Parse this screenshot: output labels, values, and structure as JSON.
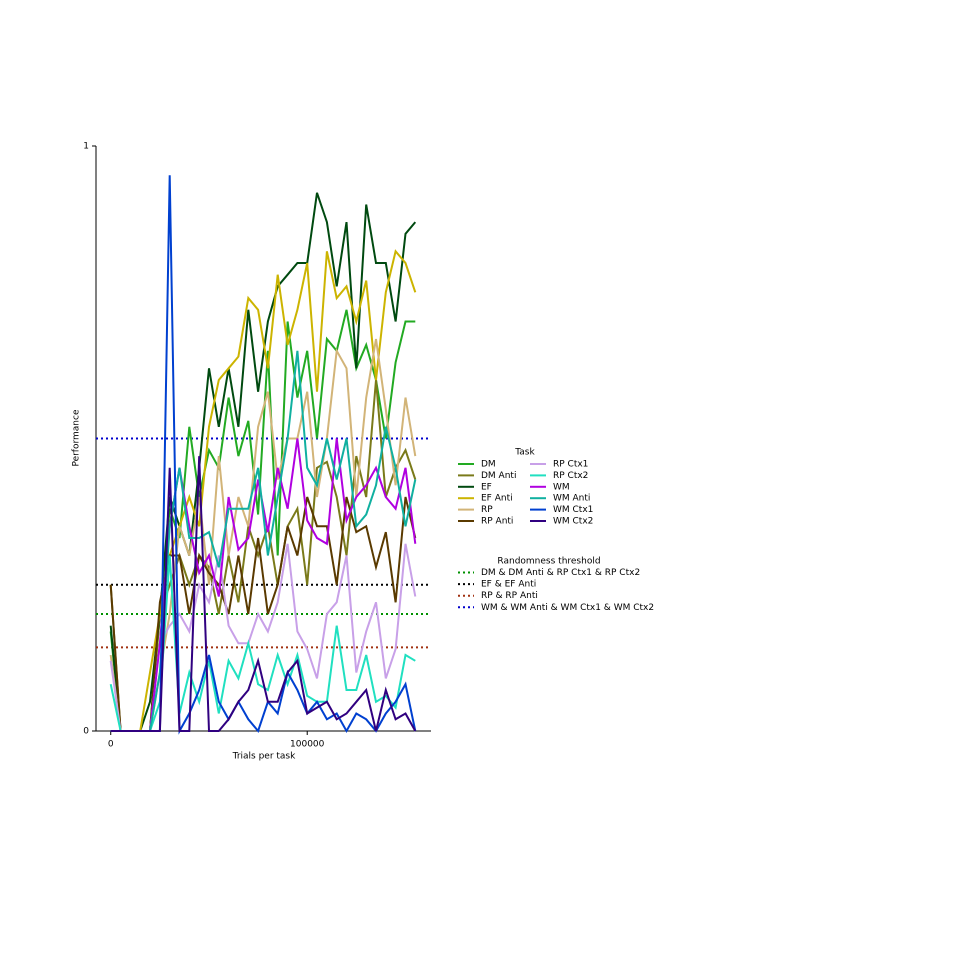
{
  "chart_data": {
    "type": "line",
    "xlabel": "Trials per task",
    "ylabel": "Performance",
    "xlim": [
      -7500,
      163000
    ],
    "ylim": [
      0,
      1
    ],
    "xticks": [
      0,
      100000
    ],
    "yticks": [
      0,
      1
    ],
    "legend_title": "Task",
    "threshold_legend_title": "Randomness threshold",
    "x": [
      0,
      5000,
      10000,
      15000,
      20000,
      25000,
      30000,
      35000,
      40000,
      45000,
      50000,
      55000,
      60000,
      65000,
      70000,
      75000,
      80000,
      85000,
      90000,
      95000,
      100000,
      105000,
      110000,
      115000,
      120000,
      125000,
      130000,
      135000,
      140000,
      145000,
      150000,
      155000
    ],
    "series": [
      {
        "name": "DM",
        "color": "#22aa22",
        "values": [
          0.17,
          0,
          0,
          0,
          0,
          0.2,
          0.38,
          0.33,
          0.52,
          0.4,
          0.48,
          0.45,
          0.57,
          0.47,
          0.53,
          0.37,
          0.65,
          0.3,
          0.7,
          0.57,
          0.65,
          0.5,
          0.67,
          0.65,
          0.72,
          0.62,
          0.66,
          0.6,
          0.5,
          0.63,
          0.7,
          0.7
        ]
      },
      {
        "name": "DM Anti",
        "color": "#7a7a1a",
        "values": [
          0.25,
          0,
          0,
          0,
          0,
          0.2,
          0.25,
          0.3,
          0.25,
          0.3,
          0.28,
          0.2,
          0.3,
          0.22,
          0.35,
          0.3,
          0.35,
          0.25,
          0.35,
          0.38,
          0.25,
          0.45,
          0.46,
          0.4,
          0.3,
          0.47,
          0.4,
          0.6,
          0.4,
          0.45,
          0.48,
          0.43
        ]
      },
      {
        "name": "EF",
        "color": "#004a10",
        "values": [
          0.18,
          0,
          0,
          0,
          0.05,
          0.2,
          0.4,
          0.35,
          0.3,
          0.45,
          0.62,
          0.52,
          0.62,
          0.52,
          0.72,
          0.58,
          0.7,
          0.76,
          0.78,
          0.8,
          0.8,
          0.92,
          0.87,
          0.76,
          0.87,
          0.62,
          0.9,
          0.8,
          0.8,
          0.7,
          0.85,
          0.87
        ]
      },
      {
        "name": "EF Anti",
        "color": "#ccb400",
        "values": [
          0,
          0,
          0,
          0,
          0.1,
          0.2,
          0.3,
          0.35,
          0.4,
          0.35,
          0.52,
          0.6,
          0.62,
          0.64,
          0.74,
          0.72,
          0.62,
          0.78,
          0.66,
          0.72,
          0.8,
          0.58,
          0.82,
          0.74,
          0.76,
          0.7,
          0.77,
          0.6,
          0.75,
          0.82,
          0.8,
          0.75
        ]
      },
      {
        "name": "RP",
        "color": "#d2b478",
        "values": [
          0.13,
          0,
          0,
          0,
          0,
          0.1,
          0.2,
          0.35,
          0.3,
          0.4,
          0.25,
          0.47,
          0.3,
          0.4,
          0.35,
          0.52,
          0.58,
          0.43,
          0.5,
          0.5,
          0.58,
          0.4,
          0.5,
          0.65,
          0.62,
          0.4,
          0.57,
          0.67,
          0.55,
          0.42,
          0.57,
          0.47
        ]
      },
      {
        "name": "RP Anti",
        "color": "#5a3a00",
        "values": [
          0.25,
          0,
          0,
          0,
          0,
          0.22,
          0.3,
          0.3,
          0.2,
          0.3,
          0.27,
          0.25,
          0.2,
          0.3,
          0.2,
          0.33,
          0.2,
          0.25,
          0.35,
          0.3,
          0.4,
          0.35,
          0.35,
          0.25,
          0.4,
          0.34,
          0.35,
          0.28,
          0.34,
          0.22,
          0.4,
          0.33
        ]
      },
      {
        "name": "RP Ctx1",
        "color": "#c8a0e8",
        "values": [
          0.12,
          0,
          0,
          0,
          0,
          0.15,
          0.18,
          0.2,
          0.17,
          0.25,
          0.22,
          0.3,
          0.18,
          0.15,
          0.15,
          0.2,
          0.17,
          0.22,
          0.32,
          0.17,
          0.14,
          0.09,
          0.2,
          0.22,
          0.3,
          0.1,
          0.17,
          0.22,
          0.09,
          0.14,
          0.32,
          0.23
        ]
      },
      {
        "name": "RP Ctx2",
        "color": "#20e0c0",
        "values": [
          0.08,
          0,
          0,
          0,
          0,
          0.05,
          0.3,
          0.03,
          0.1,
          0.05,
          0.12,
          0.03,
          0.12,
          0.09,
          0.15,
          0.08,
          0.07,
          0.13,
          0.08,
          0.13,
          0.06,
          0.05,
          0.05,
          0.18,
          0.07,
          0.07,
          0.13,
          0.05,
          0.06,
          0.04,
          0.13,
          0.12
        ]
      },
      {
        "name": "WM",
        "color": "#b000e0",
        "values": [
          0,
          0,
          0,
          0,
          0,
          0.15,
          0.35,
          0.45,
          0.35,
          0.27,
          0.3,
          0.23,
          0.4,
          0.31,
          0.33,
          0.43,
          0.34,
          0.45,
          0.38,
          0.5,
          0.36,
          0.33,
          0.32,
          0.5,
          0.36,
          0.4,
          0.42,
          0.45,
          0.4,
          0.38,
          0.45,
          0.32
        ]
      },
      {
        "name": "WM Anti",
        "color": "#10b0a0",
        "values": [
          0,
          0,
          0,
          0,
          0,
          0.1,
          0.35,
          0.45,
          0.33,
          0.33,
          0.34,
          0.28,
          0.38,
          0.38,
          0.38,
          0.45,
          0.3,
          0.4,
          0.5,
          0.65,
          0.45,
          0.42,
          0.5,
          0.43,
          0.5,
          0.35,
          0.37,
          0.42,
          0.52,
          0.45,
          0.35,
          0.43
        ]
      },
      {
        "name": "WM Ctx1",
        "color": "#0040d0",
        "values": [
          0,
          0,
          0,
          0,
          0,
          0,
          0.95,
          0,
          0.03,
          0.07,
          0.13,
          0.05,
          0.02,
          0.05,
          0.02,
          0,
          0.05,
          0.03,
          0.1,
          0.07,
          0.03,
          0.05,
          0.02,
          0.03,
          0,
          0.03,
          0.02,
          0,
          0.03,
          0.05,
          0.08,
          0
        ]
      },
      {
        "name": "WM Ctx2",
        "color": "#300080",
        "values": [
          0,
          0,
          0,
          0,
          0,
          0,
          0.45,
          0,
          0,
          0.47,
          0,
          0,
          0.02,
          0.05,
          0.07,
          0.12,
          0.05,
          0.05,
          0.1,
          0.12,
          0.03,
          0.04,
          0.05,
          0.02,
          0.03,
          0.05,
          0.07,
          0,
          0.07,
          0.02,
          0.03,
          0
        ]
      }
    ],
    "thresholds": [
      {
        "name": "DM & DM Anti & RP Ctx1 & RP Ctx2",
        "color": "#009000",
        "value": 0.2
      },
      {
        "name": "EF & EF Anti",
        "color": "#000000",
        "value": 0.25
      },
      {
        "name": "RP & RP Anti",
        "color": "#a03010",
        "value": 0.143
      },
      {
        "name": "WM & WM Anti & WM Ctx1 & WM Ctx2",
        "color": "#0000cc",
        "value": 0.5
      }
    ]
  }
}
